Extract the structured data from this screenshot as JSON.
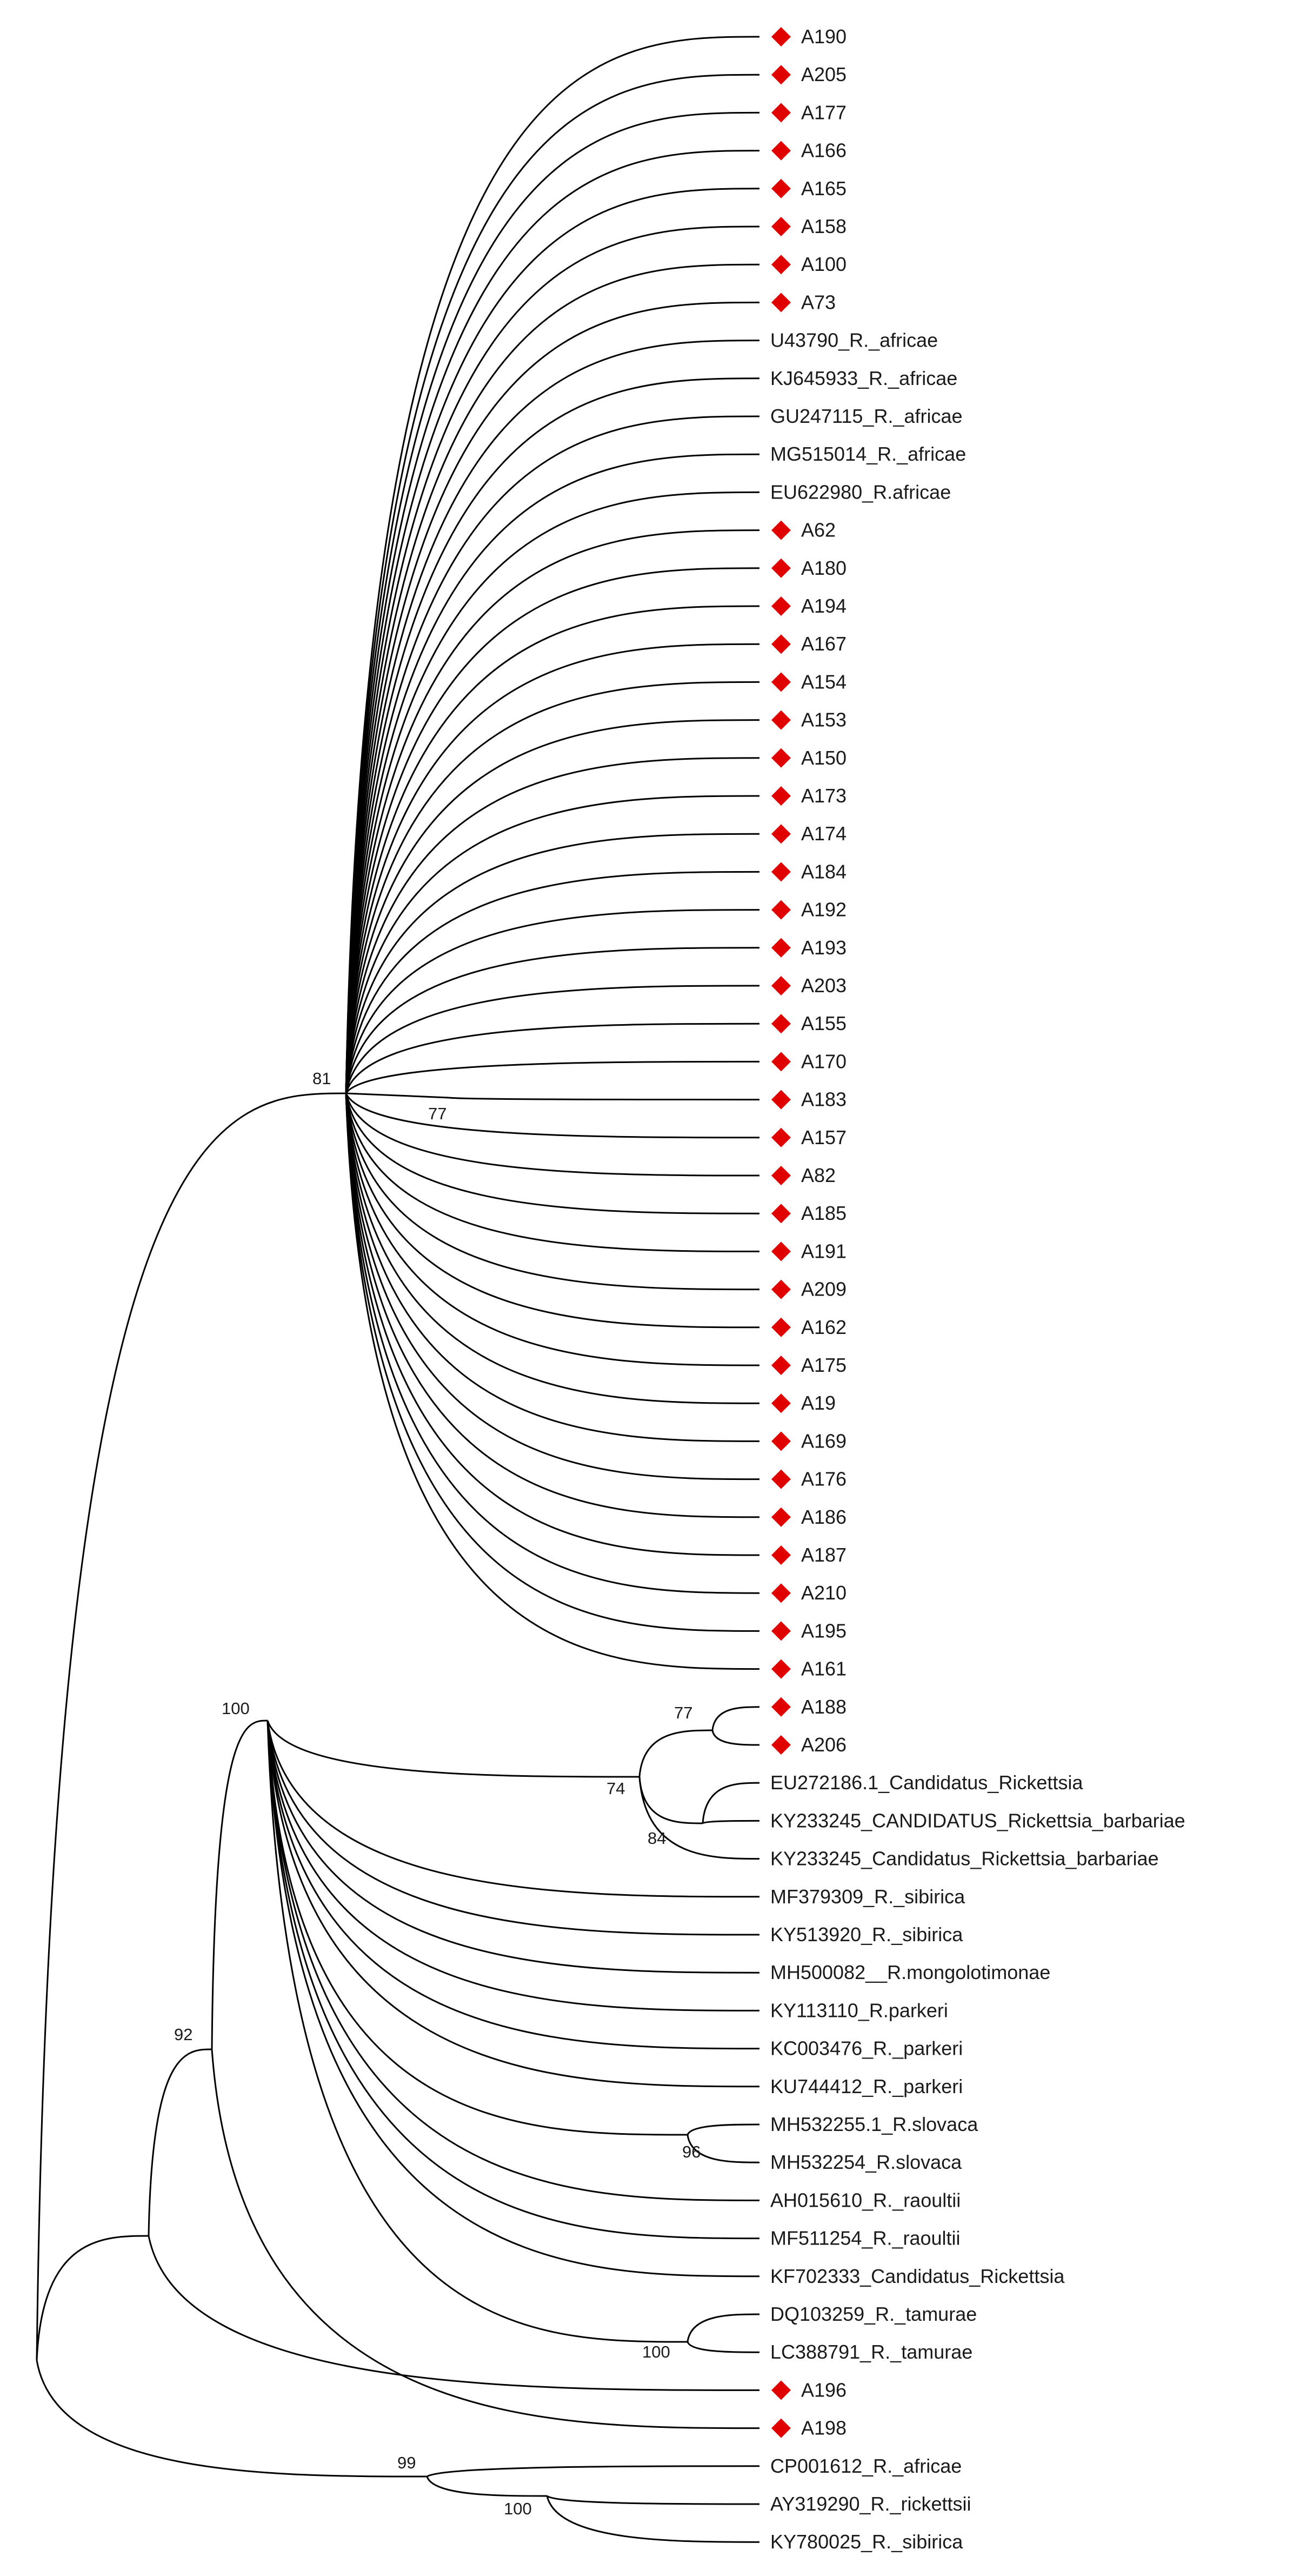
{
  "tree": {
    "marker_color": "#e00000",
    "line_color": "#000000",
    "taxa": [
      {
        "label": "A190",
        "sample": true
      },
      {
        "label": "A205",
        "sample": true
      },
      {
        "label": "A177",
        "sample": true
      },
      {
        "label": "A166",
        "sample": true
      },
      {
        "label": "A165",
        "sample": true
      },
      {
        "label": "A158",
        "sample": true
      },
      {
        "label": "A100",
        "sample": true
      },
      {
        "label": "A73",
        "sample": true
      },
      {
        "label": "U43790_R._africae",
        "sample": false
      },
      {
        "label": "KJ645933_R._africae",
        "sample": false
      },
      {
        "label": "GU247115_R._africae",
        "sample": false
      },
      {
        "label": "MG515014_R._africae",
        "sample": false
      },
      {
        "label": "EU622980_R.africae",
        "sample": false
      },
      {
        "label": "A62",
        "sample": true
      },
      {
        "label": "A180",
        "sample": true
      },
      {
        "label": "A194",
        "sample": true
      },
      {
        "label": "A167",
        "sample": true
      },
      {
        "label": "A154",
        "sample": true
      },
      {
        "label": "A153",
        "sample": true
      },
      {
        "label": "A150",
        "sample": true
      },
      {
        "label": "A173",
        "sample": true
      },
      {
        "label": "A174",
        "sample": true
      },
      {
        "label": "A184",
        "sample": true
      },
      {
        "label": "A192",
        "sample": true
      },
      {
        "label": "A193",
        "sample": true
      },
      {
        "label": "A203",
        "sample": true
      },
      {
        "label": "A155",
        "sample": true
      },
      {
        "label": "A170",
        "sample": true
      },
      {
        "label": "A183",
        "sample": true
      },
      {
        "label": "A157",
        "sample": true
      },
      {
        "label": "A82",
        "sample": true
      },
      {
        "label": "A185",
        "sample": true
      },
      {
        "label": "A191",
        "sample": true
      },
      {
        "label": "A209",
        "sample": true
      },
      {
        "label": "A162",
        "sample": true
      },
      {
        "label": "A175",
        "sample": true
      },
      {
        "label": "A19",
        "sample": true
      },
      {
        "label": "A169",
        "sample": true
      },
      {
        "label": "A176",
        "sample": true
      },
      {
        "label": "A186",
        "sample": true
      },
      {
        "label": "A187",
        "sample": true
      },
      {
        "label": "A210",
        "sample": true
      },
      {
        "label": "A195",
        "sample": true
      },
      {
        "label": "A161",
        "sample": true
      },
      {
        "label": "A188",
        "sample": true
      },
      {
        "label": "A206",
        "sample": true
      },
      {
        "label": "EU272186.1_Candidatus_Rickettsia",
        "sample": false
      },
      {
        "label": "KY233245_CANDIDATUS_Rickettsia_barbariae",
        "sample": false
      },
      {
        "label": "KY233245_Candidatus_Rickettsia_barbariae",
        "sample": false
      },
      {
        "label": "MF379309_R._sibirica",
        "sample": false
      },
      {
        "label": "KY513920_R._sibirica",
        "sample": false
      },
      {
        "label": "MH500082__R.mongolotimonae",
        "sample": false
      },
      {
        "label": "KY113110_R.parkeri",
        "sample": false
      },
      {
        "label": "KC003476_R._parkeri",
        "sample": false
      },
      {
        "label": "KU744412_R._parkeri",
        "sample": false
      },
      {
        "label": "MH532255.1_R.slovaca",
        "sample": false
      },
      {
        "label": "MH532254_R.slovaca",
        "sample": false
      },
      {
        "label": "AH015610_R._raoultii",
        "sample": false
      },
      {
        "label": "MF511254_R._raoultii",
        "sample": false
      },
      {
        "label": "KF702333_Candidatus_Rickettsia",
        "sample": false
      },
      {
        "label": "DQ103259_R._tamurae",
        "sample": false
      },
      {
        "label": "LC388791_R._tamurae",
        "sample": false
      },
      {
        "label": "A196",
        "sample": true
      },
      {
        "label": "A198",
        "sample": true
      },
      {
        "label": "CP001612_R._africae",
        "sample": false
      },
      {
        "label": "AY319290_R._rickettsii",
        "sample": false
      },
      {
        "label": "KY780025_R._sibirica",
        "sample": false
      }
    ],
    "support_values": [
      {
        "value": "81",
        "node": "africae-clade"
      },
      {
        "value": "77",
        "node": "A183-pair"
      },
      {
        "value": "100",
        "node": "spotted-fever-group"
      },
      {
        "value": "92",
        "node": "sfg-plus-A196"
      },
      {
        "value": "77",
        "node": "A188-A206"
      },
      {
        "value": "74",
        "node": "barbariae-group"
      },
      {
        "value": "84",
        "node": "barbariae-pair"
      },
      {
        "value": "96",
        "node": "slovaca-pair"
      },
      {
        "value": "100",
        "node": "tamurae-pair"
      },
      {
        "value": "99",
        "node": "outgroup-clade"
      },
      {
        "value": "100",
        "node": "rickettsii-sibirica-pair"
      }
    ]
  }
}
